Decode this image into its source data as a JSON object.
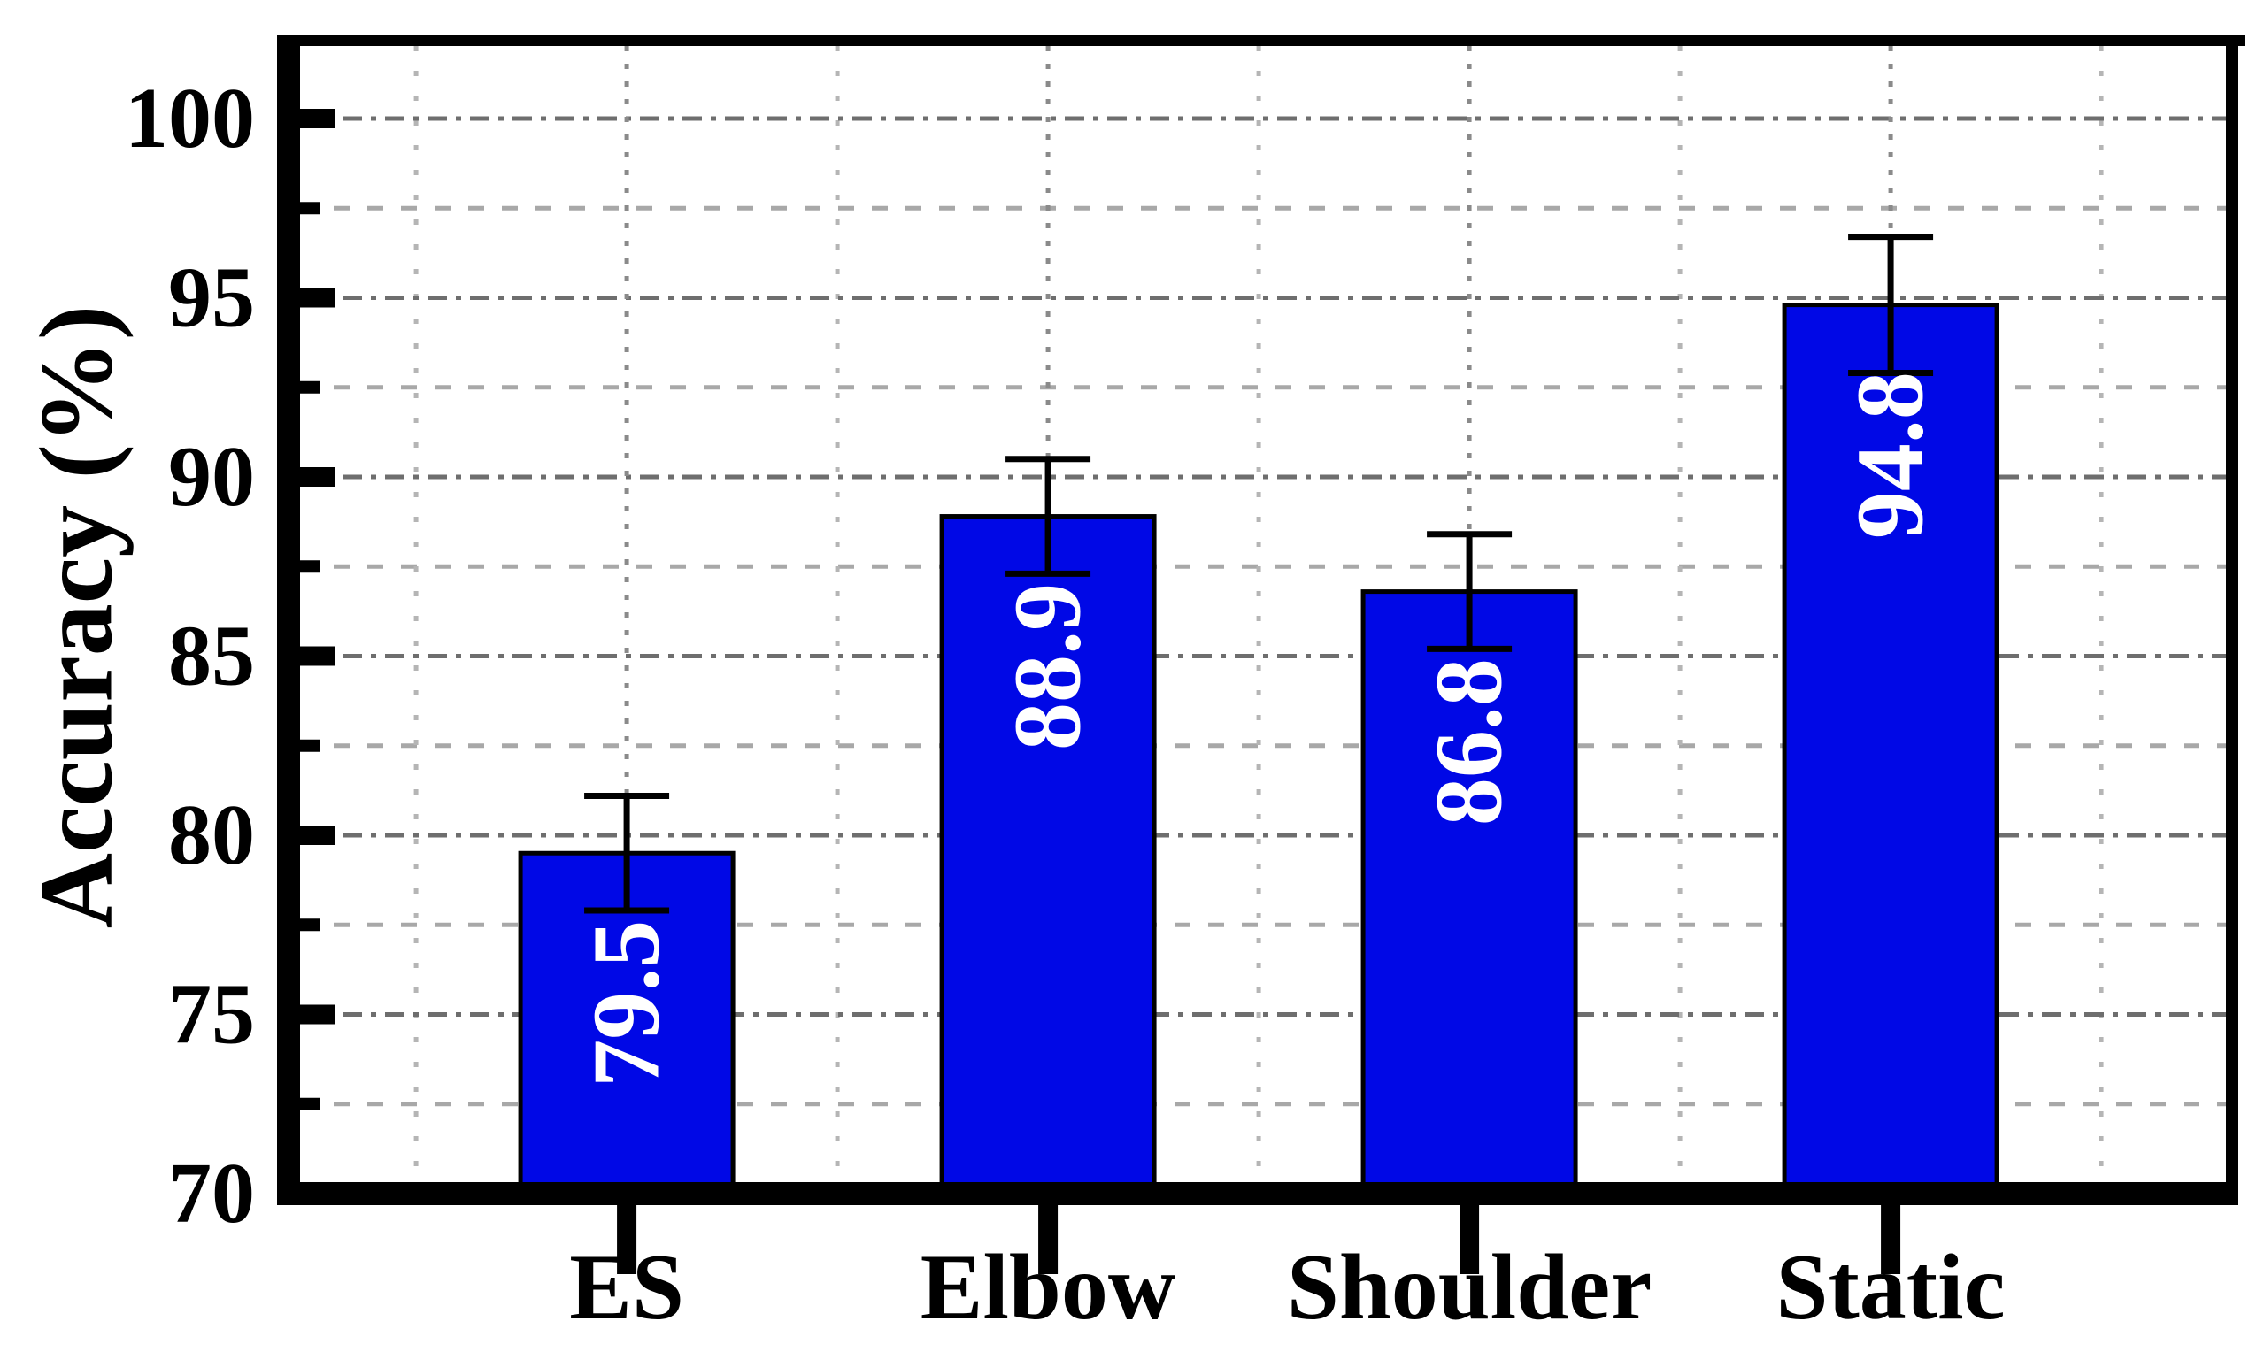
{
  "chart_data": {
    "type": "bar",
    "title": "",
    "categories": [
      "ES",
      "Elbow",
      "Shoulder",
      "Static"
    ],
    "values": [
      79.5,
      88.9,
      86.8,
      94.8
    ],
    "errors": [
      1.6,
      1.6,
      1.6,
      1.9
    ],
    "bar_labels": [
      "79.5",
      "88.9",
      "86.8",
      "94.8"
    ],
    "xlabel": "",
    "ylabel": "Accuracy (%)",
    "ylim": [
      70,
      102.15
    ],
    "yticks_major": [
      70,
      75,
      80,
      85,
      90,
      95,
      100
    ],
    "yticks_minor": [
      72.5,
      77.5,
      82.5,
      87.5,
      92.5,
      97.5
    ],
    "grid": "both-major-and-minor-dashed",
    "legend": "none",
    "colors": {
      "bar_fill": "#0008e6",
      "bar_border": "#000000",
      "bar_label_text": "#ffffff",
      "axis": "#000000",
      "grid_major": "#6e6e6e",
      "grid_minor": "#a8a8a8",
      "background": "#ffffff"
    }
  }
}
